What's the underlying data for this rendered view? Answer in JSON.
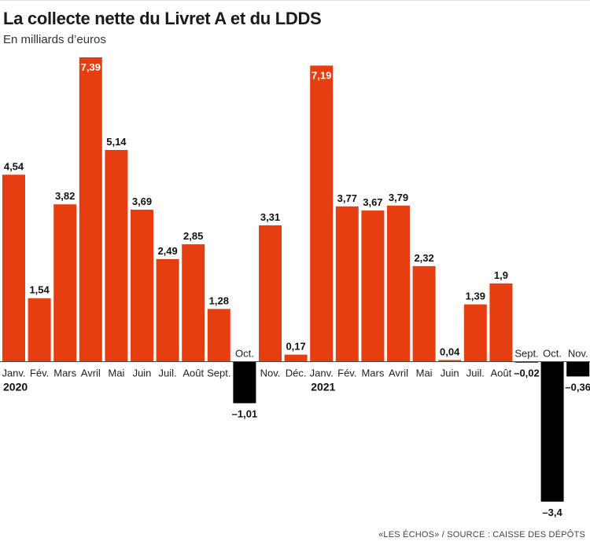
{
  "title": "La collecte nette du Livret A et du LDDS",
  "subtitle": "En milliards d’euros",
  "source": "«LES ÉCHOS» / SOURCE : CAISSE DES DÉPÔTS",
  "colors": {
    "positive": "#e63e11",
    "negative": "#000000",
    "label_on_bar": "#ffffff"
  },
  "chart_data": {
    "type": "bar",
    "title": "La collecte nette du Livret A et du LDDS",
    "ylabel": "En milliards d’euros",
    "xlabel": "",
    "ylim": [
      -3.4,
      7.39
    ],
    "grid": false,
    "legend": "none",
    "year_labels": [
      {
        "label": "2020",
        "start_index": 0
      },
      {
        "label": "2021",
        "start_index": 12
      }
    ],
    "categories": [
      "Janv.",
      "Fév.",
      "Mars",
      "Avril",
      "Mai",
      "Juin",
      "Juil.",
      "Août",
      "Sept.",
      "Oct.",
      "Nov.",
      "Déc.",
      "Janv.",
      "Fév.",
      "Mars",
      "Avril",
      "Mai",
      "Juin",
      "Juil.",
      "Août",
      "Sept.",
      "Oct.",
      "Nov."
    ],
    "values": [
      4.54,
      1.54,
      3.82,
      7.39,
      5.14,
      3.69,
      2.49,
      2.85,
      1.28,
      -1.01,
      3.31,
      0.17,
      7.19,
      3.77,
      3.67,
      3.79,
      2.32,
      0.04,
      1.39,
      1.9,
      -0.02,
      -3.4,
      -0.36
    ],
    "value_labels": [
      "4,54",
      "1,54",
      "3,82",
      "7,39",
      "5,14",
      "3,69",
      "2,49",
      "2,85",
      "1,28",
      "–1,01",
      "3,31",
      "0,17",
      "7,19",
      "3,77",
      "3,67",
      "3,79",
      "2,32",
      "0,04",
      "1,39",
      "1,9",
      "–0,02",
      "–3,4",
      "–0,36"
    ]
  }
}
